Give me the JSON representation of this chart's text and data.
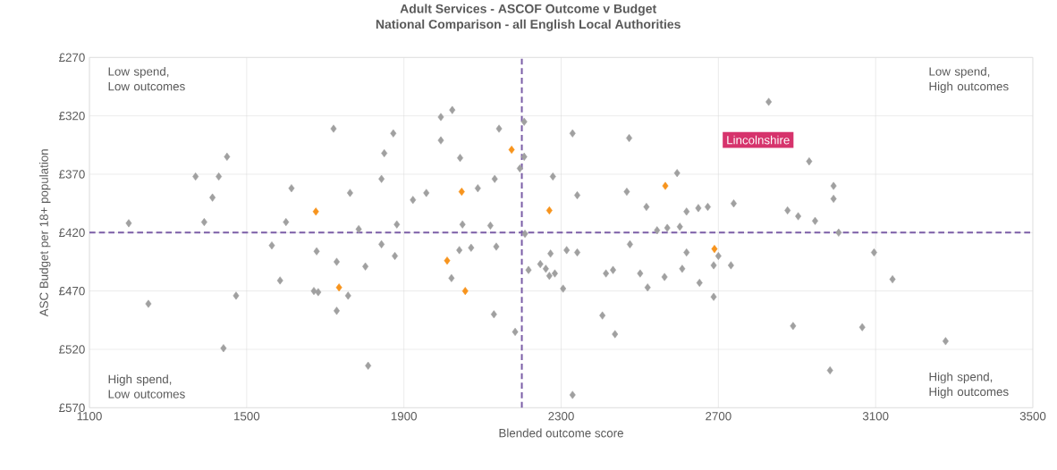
{
  "chart_data": {
    "type": "scatter",
    "title": "Adult Services - ASCOF Outcome v Budget",
    "subtitle": "National Comparison - all English Local Authorities",
    "xlabel": "Blended outcome score",
    "ylabel": "ASC Budget per 18+ population",
    "xlim": [
      1100,
      3500
    ],
    "xticks": [
      1100,
      1500,
      1900,
      2300,
      2700,
      3100,
      3500
    ],
    "ylim": [
      570,
      270
    ],
    "yticks": [
      {
        "value": 270,
        "label": "£270"
      },
      {
        "value": 320,
        "label": "£320"
      },
      {
        "value": 370,
        "label": "£370"
      },
      {
        "value": 420,
        "label": "£420"
      },
      {
        "value": 470,
        "label": "£470"
      },
      {
        "value": 520,
        "label": "£520"
      },
      {
        "value": 570,
        "label": "£570"
      }
    ],
    "grid": true,
    "marker": "diamond",
    "series": [
      {
        "color": "#a0a0a0",
        "x": [
          1721,
          1873,
          1450,
          1370,
          1429,
          1850,
          1843,
          1614,
          1763,
          1413,
          1200,
          1392,
          1600,
          1882,
          1785,
          1923,
          1564,
          1678,
          1729,
          1802,
          1843,
          1877,
          1585,
          1671,
          1682,
          1758,
          1729,
          1473,
          1250,
          1441,
          1809,
          1994,
          2023,
          1994,
          2142,
          2206,
          2329,
          2473,
          2043,
          2195,
          2206,
          2131,
          2088,
          1957,
          2279,
          2341,
          2467,
          2517,
          2595,
          2619,
          2649,
          2673,
          2602,
          2544,
          2570,
          2739,
          2049,
          2120,
          2208,
          2828,
          2931,
          2993,
          2993,
          2876,
          2903,
          2946,
          3006,
          2041,
          2071,
          2135,
          2021,
          2129,
          2183,
          2217,
          2247,
          2261,
          2270,
          2284,
          2273,
          2314,
          2341,
          2305,
          2405,
          2437,
          2329,
          2475,
          2414,
          2432,
          2501,
          2520,
          2563,
          2619,
          2608,
          2652,
          2688,
          2688,
          2700,
          2732,
          3096,
          3143,
          2890,
          3066,
          3278,
          2984
        ],
        "values": [
          331,
          335,
          355,
          372,
          372,
          352,
          374,
          382,
          386,
          390,
          412,
          411,
          411,
          413,
          417,
          392,
          431,
          436,
          445,
          449,
          430,
          440,
          461,
          470,
          471,
          474,
          487,
          474,
          481,
          519,
          534,
          321,
          315,
          341,
          331,
          325,
          335,
          339,
          356,
          365,
          355,
          374,
          382,
          386,
          372,
          388,
          385,
          398,
          369,
          402,
          399,
          398,
          415,
          418,
          416,
          395,
          413,
          414,
          421,
          308,
          359,
          380,
          391,
          401,
          406,
          410,
          420,
          435,
          433,
          432,
          459,
          490,
          505,
          452,
          447,
          451,
          457,
          455,
          438,
          435,
          437,
          468,
          491,
          507,
          559,
          430,
          455,
          452,
          455,
          467,
          458,
          437,
          451,
          463,
          448,
          475,
          440,
          448,
          437,
          460,
          500,
          501,
          513,
          538
        ]
      },
      {
        "color": "#f7941d",
        "x": [
          1676,
          1735,
          2174,
          2047,
          2270,
          2565,
          2010,
          2056,
          2690
        ],
        "values": [
          402,
          467,
          349,
          385,
          401,
          380,
          444,
          470,
          434
        ]
      }
    ],
    "ref_lines": [
      {
        "axis": "x",
        "value": 2200,
        "color": "#7b5ea7",
        "line_style": "dashed"
      },
      {
        "axis": "y",
        "value": 420,
        "color": "#7b5ea7",
        "line_style": "dashed"
      }
    ],
    "annotations": [
      "Low spend, Low outcomes",
      "Low spend, High outcomes",
      "High spend, Low outcomes",
      "High spend, High outcomes",
      "Lincolnshire"
    ]
  }
}
